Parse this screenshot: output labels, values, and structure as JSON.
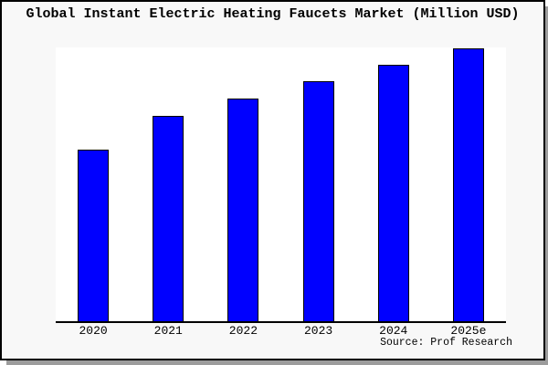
{
  "window": {
    "background": "#f8f8f8",
    "border_color": "#000000",
    "shadow_color": "#9c9c9c"
  },
  "chart_data": {
    "type": "bar",
    "title": "Global Instant Electric Heating Faucets Market (Million USD)",
    "categories": [
      "2020",
      "2021",
      "2022",
      "2023",
      "2024",
      "2025e"
    ],
    "values": [
      62.7,
      75.0,
      81.3,
      87.7,
      93.7,
      99.7
    ],
    "xlabel": "",
    "ylabel": "",
    "ylim": [
      0,
      100
    ],
    "grid": false,
    "legend": null,
    "bar_color": "#0000ff",
    "bar_edge_color": "#000000",
    "plot_background": "#ffffff",
    "source_note": "Source: Prof Research"
  }
}
